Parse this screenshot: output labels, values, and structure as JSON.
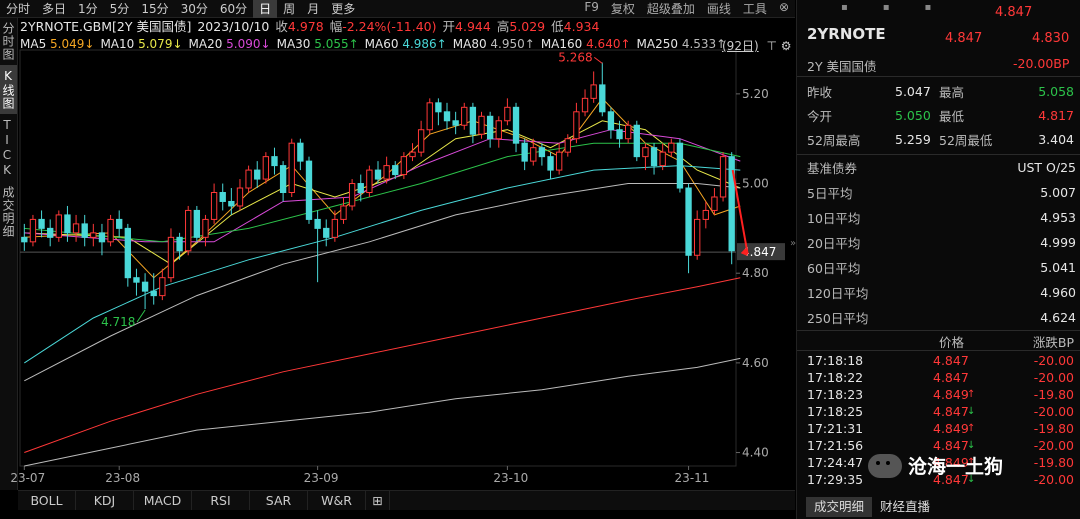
{
  "toolbar": {
    "periods": [
      "分时",
      "多日",
      "1分",
      "5分",
      "15分",
      "30分",
      "60分",
      "日",
      "周",
      "月",
      "更多"
    ],
    "active_period": "日",
    "right_items": [
      "F9",
      "复权",
      "超级叠加",
      "画线",
      "工具"
    ]
  },
  "left_tabs": [
    "分时图",
    "K线图",
    "TICK",
    "成交明细"
  ],
  "header": {
    "name": "2YRNOTE.GBM[2Y 美国国债]",
    "date": "2023/10/10",
    "close_label": "收",
    "close": "4.978",
    "change_label": "幅",
    "change": "-2.24%(-11.40)",
    "open_label": "开",
    "open": "4.944",
    "high_label": "高",
    "high": "5.029",
    "low_label": "低",
    "low": "4.934"
  },
  "ma_legend": [
    {
      "label": "MA5",
      "value": "5.049↓",
      "color": "#f5a623"
    },
    {
      "label": "MA10",
      "value": "5.079↓",
      "color": "#e8e84a"
    },
    {
      "label": "MA20",
      "value": "5.090↓",
      "color": "#d84ad8"
    },
    {
      "label": "MA30",
      "value": "5.055↑",
      "color": "#2cc24a"
    },
    {
      "label": "MA60",
      "value": "4.986↑",
      "color": "#4ad8d8"
    },
    {
      "label": "MA80",
      "value": "4.950↑",
      "color": "#bbbbbb"
    },
    {
      "label": "MA160",
      "value": "4.640↑",
      "color": "#ff3838"
    },
    {
      "label": "MA250",
      "value": "4.533↑",
      "color": "#bbbbbb"
    }
  ],
  "period_badge": "(92日)",
  "bottom_tabs": [
    "BOLL",
    "KDJ",
    "MACD",
    "RSI",
    "SAR",
    "W&R"
  ],
  "chart_data": {
    "type": "candlestick",
    "ylim": [
      4.37,
      5.28
    ],
    "y_ticks": [
      "5.20",
      "5.00",
      "4.80",
      "4.60",
      "4.40"
    ],
    "x_labels": [
      {
        "label": "23-07",
        "i": 0
      },
      {
        "label": "23-08",
        "i": 11
      },
      {
        "label": "23-09",
        "i": 34
      },
      {
        "label": "23-10",
        "i": 56
      },
      {
        "label": "23-11",
        "i": 77
      }
    ],
    "annotations": [
      {
        "text": "5.268",
        "i": 67,
        "y": 5.268
      },
      {
        "text": "4.718",
        "i": 14,
        "y": 4.718
      }
    ],
    "last_price": "4.847",
    "last_value": 4.847,
    "bull_color": "#ff3838",
    "bear_color": "#4ad8d8",
    "candles": [
      [
        4.88,
        4.87,
        4.91,
        4.85
      ],
      [
        4.87,
        4.92,
        4.93,
        4.86
      ],
      [
        4.92,
        4.9,
        4.94,
        4.88
      ],
      [
        4.9,
        4.88,
        4.92,
        4.86
      ],
      [
        4.88,
        4.93,
        4.94,
        4.87
      ],
      [
        4.93,
        4.89,
        4.95,
        4.87
      ],
      [
        4.89,
        4.91,
        4.93,
        4.87
      ],
      [
        4.91,
        4.88,
        4.93,
        4.86
      ],
      [
        4.88,
        4.89,
        4.91,
        4.86
      ],
      [
        4.89,
        4.87,
        4.91,
        4.84
      ],
      [
        4.87,
        4.92,
        4.93,
        4.86
      ],
      [
        4.92,
        4.9,
        4.94,
        4.88
      ],
      [
        4.9,
        4.79,
        4.91,
        4.77
      ],
      [
        4.79,
        4.78,
        4.81,
        4.75
      ],
      [
        4.78,
        4.76,
        4.8,
        4.72
      ],
      [
        4.76,
        4.75,
        4.8,
        4.73
      ],
      [
        4.75,
        4.79,
        4.81,
        4.74
      ],
      [
        4.79,
        4.88,
        4.9,
        4.78
      ],
      [
        4.88,
        4.85,
        4.89,
        4.83
      ],
      [
        4.85,
        4.94,
        4.95,
        4.84
      ],
      [
        4.94,
        4.88,
        4.95,
        4.87
      ],
      [
        4.88,
        4.92,
        4.93,
        4.86
      ],
      [
        4.92,
        4.98,
        5.0,
        4.91
      ],
      [
        4.98,
        4.96,
        5.0,
        4.94
      ],
      [
        4.96,
        4.95,
        4.99,
        4.93
      ],
      [
        4.95,
        4.99,
        5.01,
        4.94
      ],
      [
        4.99,
        5.03,
        5.04,
        4.98
      ],
      [
        5.03,
        5.01,
        5.05,
        4.99
      ],
      [
        5.01,
        5.06,
        5.07,
        5.0
      ],
      [
        5.06,
        5.04,
        5.08,
        5.02
      ],
      [
        5.04,
        4.98,
        5.05,
        4.96
      ],
      [
        4.98,
        5.09,
        5.1,
        4.97
      ],
      [
        5.09,
        5.05,
        5.1,
        5.03
      ],
      [
        5.05,
        4.92,
        5.06,
        4.91
      ],
      [
        4.92,
        4.9,
        4.94,
        4.78
      ],
      [
        4.9,
        4.88,
        4.92,
        4.86
      ],
      [
        4.88,
        4.92,
        4.94,
        4.87
      ],
      [
        4.92,
        4.95,
        4.97,
        4.91
      ],
      [
        4.95,
        5.0,
        5.01,
        4.94
      ],
      [
        5.0,
        4.98,
        5.02,
        4.96
      ],
      [
        4.98,
        5.03,
        5.04,
        4.97
      ],
      [
        5.03,
        5.01,
        5.05,
        5.0
      ],
      [
        5.01,
        5.04,
        5.06,
        5.0
      ],
      [
        5.04,
        5.02,
        5.05,
        5.01
      ],
      [
        5.02,
        5.06,
        5.07,
        5.01
      ],
      [
        5.06,
        5.07,
        5.09,
        5.05
      ],
      [
        5.07,
        5.12,
        5.14,
        5.06
      ],
      [
        5.12,
        5.18,
        5.19,
        5.11
      ],
      [
        5.18,
        5.16,
        5.19,
        5.13
      ],
      [
        5.16,
        5.14,
        5.18,
        5.12
      ],
      [
        5.14,
        5.13,
        5.16,
        5.11
      ],
      [
        5.13,
        5.17,
        5.18,
        5.12
      ],
      [
        5.17,
        5.11,
        5.18,
        5.09
      ],
      [
        5.11,
        5.15,
        5.16,
        5.1
      ],
      [
        5.15,
        5.1,
        5.16,
        5.08
      ],
      [
        5.1,
        5.14,
        5.15,
        5.08
      ],
      [
        5.14,
        5.17,
        5.19,
        5.13
      ],
      [
        5.17,
        5.09,
        5.18,
        5.07
      ],
      [
        5.09,
        5.05,
        5.1,
        5.03
      ],
      [
        5.05,
        5.08,
        5.1,
        5.04
      ],
      [
        5.08,
        5.06,
        5.09,
        5.04
      ],
      [
        5.06,
        5.03,
        5.07,
        5.01
      ],
      [
        5.03,
        5.07,
        5.09,
        5.02
      ],
      [
        5.07,
        5.1,
        5.11,
        5.06
      ],
      [
        5.1,
        5.16,
        5.18,
        5.09
      ],
      [
        5.16,
        5.19,
        5.21,
        5.15
      ],
      [
        5.19,
        5.22,
        5.25,
        5.18
      ],
      [
        5.22,
        5.16,
        5.27,
        5.15
      ],
      [
        5.16,
        5.12,
        5.17,
        5.1
      ],
      [
        5.12,
        5.1,
        5.14,
        5.08
      ],
      [
        5.1,
        5.13,
        5.14,
        5.09
      ],
      [
        5.13,
        5.06,
        5.14,
        5.05
      ],
      [
        5.06,
        5.08,
        5.09,
        5.03
      ],
      [
        5.08,
        5.04,
        5.09,
        5.02
      ],
      [
        5.04,
        5.07,
        5.09,
        5.03
      ],
      [
        5.07,
        5.09,
        5.1,
        5.06
      ],
      [
        5.09,
        4.99,
        5.1,
        4.98
      ],
      [
        4.99,
        4.84,
        5.0,
        4.8
      ],
      [
        4.84,
        4.92,
        4.94,
        4.83
      ],
      [
        4.92,
        4.94,
        4.96,
        4.9
      ],
      [
        4.94,
        4.97,
        4.99,
        4.93
      ],
      [
        4.97,
        5.06,
        5.07,
        4.96
      ],
      [
        5.06,
        4.85,
        5.07,
        4.82
      ]
    ],
    "ma_lines": [
      {
        "name": "MA5",
        "color": "#f5a623",
        "pts": [
          [
            0,
            4.88
          ],
          [
            10,
            4.89
          ],
          [
            15,
            4.79
          ],
          [
            20,
            4.87
          ],
          [
            26,
            4.98
          ],
          [
            31,
            5.04
          ],
          [
            36,
            4.93
          ],
          [
            42,
            5.02
          ],
          [
            47,
            5.11
          ],
          [
            52,
            5.14
          ],
          [
            58,
            5.1
          ],
          [
            62,
            5.06
          ],
          [
            67,
            5.19
          ],
          [
            72,
            5.09
          ],
          [
            76,
            5.05
          ],
          [
            80,
            4.93
          ],
          [
            83,
            4.95
          ]
        ]
      },
      {
        "name": "MA10",
        "color": "#e8e84a",
        "pts": [
          [
            0,
            4.89
          ],
          [
            12,
            4.88
          ],
          [
            17,
            4.82
          ],
          [
            24,
            4.93
          ],
          [
            31,
            5.0
          ],
          [
            36,
            4.97
          ],
          [
            44,
            5.02
          ],
          [
            50,
            5.1
          ],
          [
            56,
            5.12
          ],
          [
            61,
            5.08
          ],
          [
            67,
            5.14
          ],
          [
            72,
            5.12
          ],
          [
            78,
            5.03
          ],
          [
            83,
            4.99
          ]
        ]
      },
      {
        "name": "MA20",
        "color": "#d84ad8",
        "pts": [
          [
            0,
            4.89
          ],
          [
            14,
            4.87
          ],
          [
            22,
            4.87
          ],
          [
            30,
            4.96
          ],
          [
            38,
            4.97
          ],
          [
            46,
            5.04
          ],
          [
            54,
            5.1
          ],
          [
            62,
            5.09
          ],
          [
            68,
            5.12
          ],
          [
            76,
            5.1
          ],
          [
            83,
            5.05
          ]
        ]
      },
      {
        "name": "MA30",
        "color": "#2cc24a",
        "pts": [
          [
            0,
            4.9
          ],
          [
            16,
            4.87
          ],
          [
            26,
            4.9
          ],
          [
            36,
            4.95
          ],
          [
            46,
            5.0
          ],
          [
            56,
            5.06
          ],
          [
            66,
            5.09
          ],
          [
            76,
            5.09
          ],
          [
            83,
            5.06
          ]
        ]
      },
      {
        "name": "MA60",
        "color": "#4ad8d8",
        "pts": [
          [
            0,
            4.6
          ],
          [
            8,
            4.7
          ],
          [
            16,
            4.77
          ],
          [
            26,
            4.83
          ],
          [
            36,
            4.88
          ],
          [
            46,
            4.94
          ],
          [
            56,
            4.99
          ],
          [
            66,
            5.03
          ],
          [
            76,
            5.04
          ],
          [
            83,
            5.03
          ]
        ]
      },
      {
        "name": "MA80",
        "color": "#bbbbbb",
        "pts": [
          [
            0,
            4.56
          ],
          [
            10,
            4.66
          ],
          [
            20,
            4.75
          ],
          [
            30,
            4.82
          ],
          [
            40,
            4.87
          ],
          [
            50,
            4.93
          ],
          [
            60,
            4.97
          ],
          [
            70,
            5.0
          ],
          [
            78,
            5.0
          ],
          [
            83,
            4.99
          ]
        ]
      },
      {
        "name": "MA160",
        "color": "#ff3838",
        "pts": [
          [
            0,
            4.4
          ],
          [
            10,
            4.47
          ],
          [
            20,
            4.53
          ],
          [
            30,
            4.58
          ],
          [
            40,
            4.62
          ],
          [
            50,
            4.66
          ],
          [
            60,
            4.7
          ],
          [
            70,
            4.74
          ],
          [
            78,
            4.77
          ],
          [
            83,
            4.79
          ]
        ]
      },
      {
        "name": "MA250",
        "color": "#bbbbbb",
        "pts": [
          [
            0,
            4.37
          ],
          [
            10,
            4.41
          ],
          [
            20,
            4.45
          ],
          [
            30,
            4.47
          ],
          [
            40,
            4.49
          ],
          [
            50,
            4.52
          ],
          [
            60,
            4.54
          ],
          [
            70,
            4.57
          ],
          [
            78,
            4.59
          ],
          [
            83,
            4.61
          ]
        ]
      }
    ]
  },
  "side": {
    "top_price": "4.847",
    "code": "2YRNOTE",
    "code_price": "4.847",
    "code_price2": "4.830",
    "name": "2Y 美国国债",
    "change_bp": "-20.00BP",
    "stats": [
      {
        "l1": "昨收",
        "v1": "5.047",
        "c1": "white",
        "l2": "最高",
        "v2": "5.058",
        "c2": "green"
      },
      {
        "l1": "今开",
        "v1": "5.050",
        "c1": "green",
        "l2": "最低",
        "v2": "4.817",
        "c2": "red"
      },
      {
        "l1": "52周最高",
        "v1": "5.259",
        "c1": "white",
        "l2": "52周最低",
        "v2": "3.404",
        "c2": "white"
      }
    ],
    "bond_label": "基准债券",
    "bond_value": "UST O/25",
    "averages": [
      {
        "label": "5日平均",
        "value": "5.007"
      },
      {
        "label": "10日平均",
        "value": "4.953"
      },
      {
        "label": "20日平均",
        "value": "4.999"
      },
      {
        "label": "60日平均",
        "value": "5.041"
      },
      {
        "label": "120日平均",
        "value": "4.960"
      },
      {
        "label": "250日平均",
        "value": "4.624"
      }
    ],
    "tick_header": {
      "price": "价格",
      "bp": "涨跌BP"
    },
    "ticks": [
      {
        "time": "17:18:18",
        "price": "4.847",
        "arrow": "",
        "bp": "-20.00"
      },
      {
        "time": "17:18:22",
        "price": "4.847",
        "arrow": "",
        "bp": "-20.00"
      },
      {
        "time": "17:18:23",
        "price": "4.849",
        "arrow": "up",
        "bp": "-19.80"
      },
      {
        "time": "17:18:25",
        "price": "4.847",
        "arrow": "down",
        "bp": "-20.00"
      },
      {
        "time": "17:21:31",
        "price": "4.849",
        "arrow": "up",
        "bp": "-19.80"
      },
      {
        "time": "17:21:56",
        "price": "4.847",
        "arrow": "down",
        "bp": "-20.00"
      },
      {
        "time": "17:24:47",
        "price": "4.849",
        "arrow": "up",
        "bp": "-19.80"
      },
      {
        "time": "17:29:35",
        "price": "4.847",
        "arrow": "down",
        "bp": "-20.00"
      }
    ],
    "bottom_tabs": [
      "成交明细",
      "财经直播"
    ]
  },
  "watermark": "沧海一土狗"
}
